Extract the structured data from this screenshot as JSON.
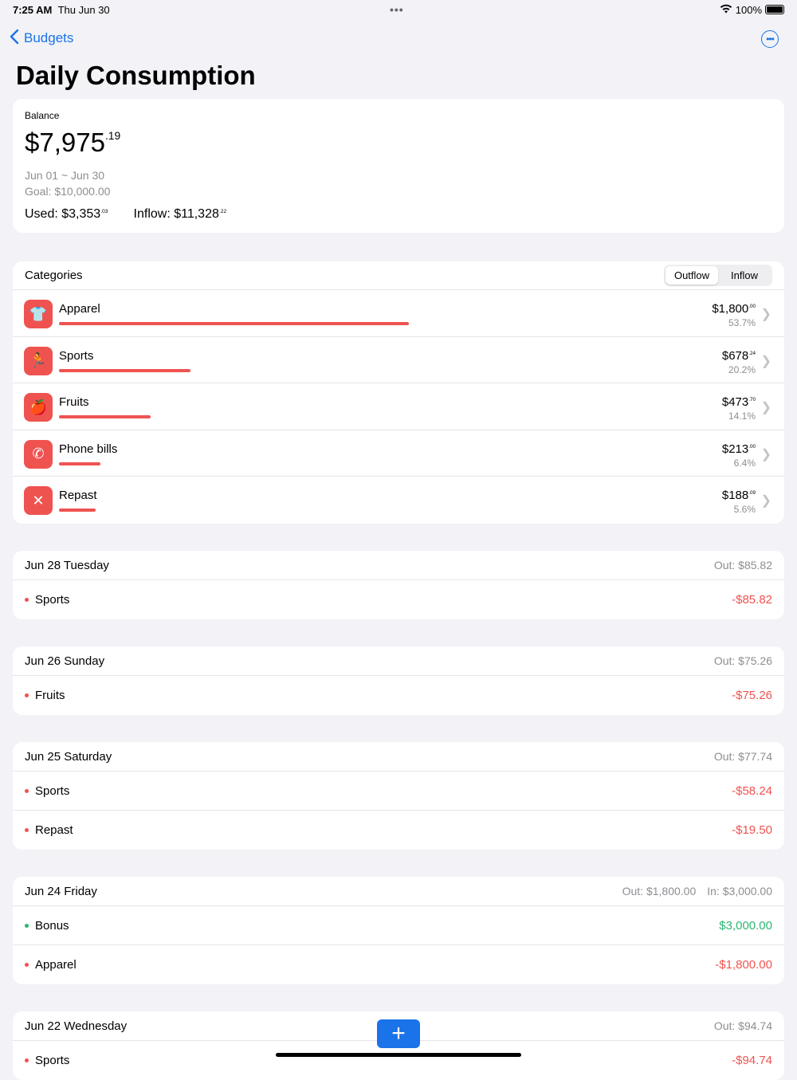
{
  "status": {
    "time": "7:25 AM",
    "date": "Thu Jun 30",
    "battery": "100%",
    "battery_level": 1.0
  },
  "nav": {
    "back_label": "Budgets",
    "title": "Daily Consumption"
  },
  "balance": {
    "label": "Balance",
    "amount": "$7,975",
    "cents": ".19",
    "period": "Jun 01 ~ Jun 30",
    "goal": "Goal: $10,000.00",
    "used_label": "Used: $3,353",
    "used_cents": ".03",
    "inflow_label": "Inflow: $11,328",
    "inflow_cents": ".22"
  },
  "categories": {
    "title": "Categories",
    "tabs": [
      "Outflow",
      "Inflow"
    ],
    "selected_tab": "Outflow",
    "accent": "#ef5350",
    "items": [
      {
        "name": "Apparel",
        "icon": "shirt-icon",
        "amount": "$1,800",
        "cents": ".00",
        "percent": "53.7%",
        "share": 53.7
      },
      {
        "name": "Sports",
        "icon": "running-icon",
        "amount": "$678",
        "cents": ".24",
        "percent": "20.2%",
        "share": 20.2
      },
      {
        "name": "Fruits",
        "icon": "fruit-icon",
        "amount": "$473",
        "cents": ".70",
        "percent": "14.1%",
        "share": 14.1
      },
      {
        "name": "Phone bills",
        "icon": "phone-icon",
        "amount": "$213",
        "cents": ".00",
        "percent": "6.4%",
        "share": 6.4
      },
      {
        "name": "Repast",
        "icon": "fork-knife-icon",
        "amount": "$188",
        "cents": ".09",
        "percent": "5.6%",
        "share": 5.6
      }
    ]
  },
  "days": [
    {
      "date": "Jun 28 Tuesday",
      "out": "Out: $85.82",
      "in": "",
      "items": [
        {
          "name": "Sports",
          "amount": "-$85.82",
          "type": "out"
        }
      ]
    },
    {
      "date": "Jun 26 Sunday",
      "out": "Out: $75.26",
      "in": "",
      "items": [
        {
          "name": "Fruits",
          "amount": "-$75.26",
          "type": "out"
        }
      ]
    },
    {
      "date": "Jun 25 Saturday",
      "out": "Out: $77.74",
      "in": "",
      "items": [
        {
          "name": "Sports",
          "amount": "-$58.24",
          "type": "out"
        },
        {
          "name": "Repast",
          "amount": "-$19.50",
          "type": "out"
        }
      ]
    },
    {
      "date": "Jun 24 Friday",
      "out": "Out: $1,800.00",
      "in": "In: $3,000.00",
      "items": [
        {
          "name": "Bonus",
          "amount": "$3,000.00",
          "type": "in"
        },
        {
          "name": "Apparel",
          "amount": "-$1,800.00",
          "type": "out"
        }
      ]
    },
    {
      "date": "Jun 22 Wednesday",
      "out": "Out: $94.74",
      "in": "",
      "items": [
        {
          "name": "Sports",
          "amount": "-$94.74",
          "type": "out"
        }
      ]
    }
  ],
  "colors": {
    "out": "#ef5350",
    "in": "#2bb673",
    "accent": "#1a73e8"
  },
  "fab": {
    "label": "+"
  }
}
